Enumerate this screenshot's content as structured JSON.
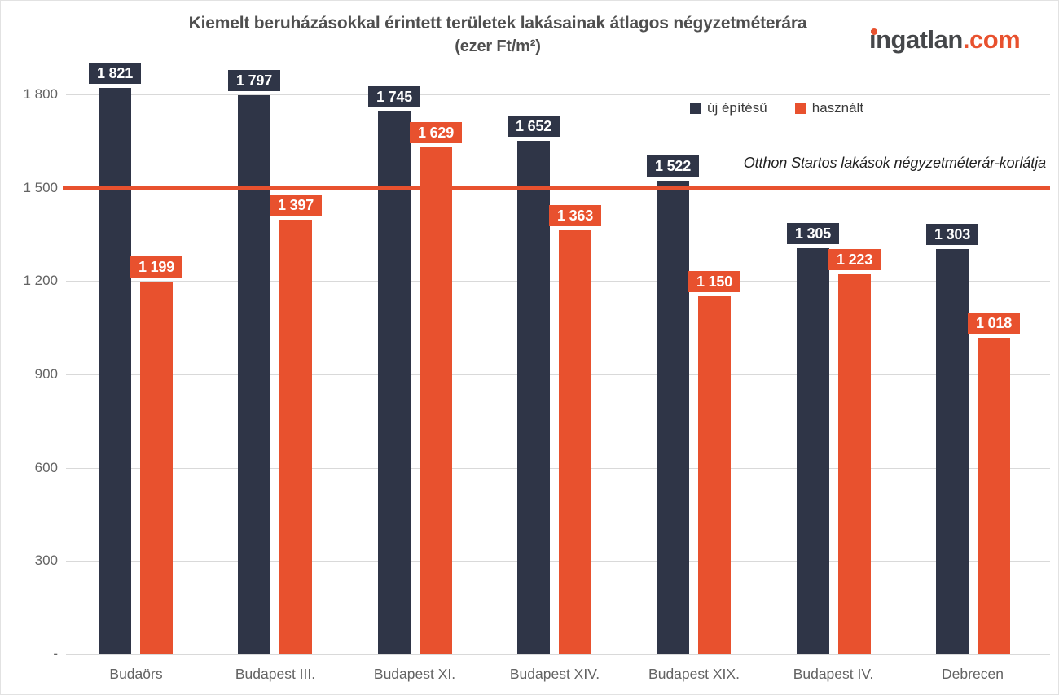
{
  "logo": {
    "name": "ingatlan",
    "tld": ".com",
    "dark_color": "#45474a",
    "accent_color": "#e8512e"
  },
  "chart_data": {
    "type": "bar",
    "title": "Kiemelt beruházásokkal érintett területek lakásainak átlagos négyzetméterára",
    "subtitle": "(ezer Ft/m²)",
    "categories": [
      "Budaörs",
      "Budapest III.",
      "Budapest XI.",
      "Budapest XIV.",
      "Budapest XIX.",
      "Budapest IV.",
      "Debrecen"
    ],
    "series": [
      {
        "name": "új építésű",
        "color": "#2f3547",
        "values": [
          1821,
          1797,
          1745,
          1652,
          1522,
          1305,
          1303
        ],
        "labels": [
          "1 821",
          "1 797",
          "1 745",
          "1 652",
          "1 522",
          "1 305",
          "1 303"
        ]
      },
      {
        "name": "használt",
        "color": "#e8512e",
        "values": [
          1199,
          1397,
          1629,
          1363,
          1150,
          1223,
          1018
        ],
        "labels": [
          "1 199",
          "1 397",
          "1 629",
          "1 363",
          "1 150",
          "1 223",
          "1 018"
        ]
      }
    ],
    "ylim": [
      0,
      1800
    ],
    "yticks": [
      {
        "value": 1800,
        "label": "1 800"
      },
      {
        "value": 1500,
        "label": "1 500"
      },
      {
        "value": 1200,
        "label": "1 200"
      },
      {
        "value": 900,
        "label": "900"
      },
      {
        "value": 600,
        "label": "600"
      },
      {
        "value": 300,
        "label": "300"
      },
      {
        "value": 0,
        "label": "-"
      }
    ],
    "grid": true,
    "legend_position": "top-right",
    "reference_line": {
      "value": 1500,
      "label": "Otthon Startos lakások négyzetméterár-korlátja",
      "color": "#e8512e",
      "thickness_px": 6
    },
    "grid_color": "#d9d9d9"
  }
}
